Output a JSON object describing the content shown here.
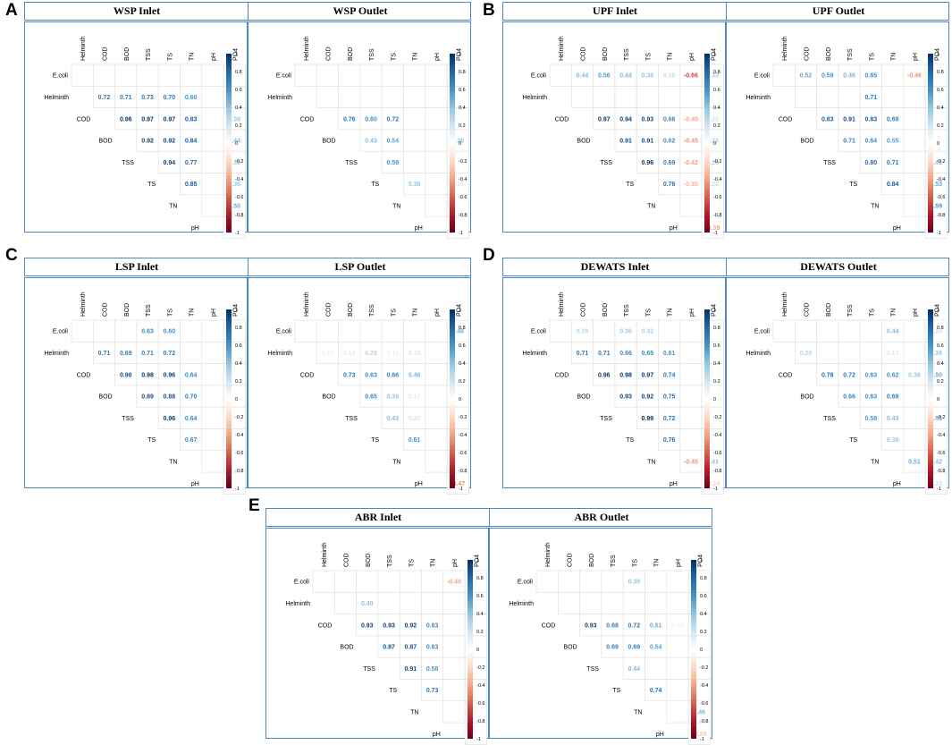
{
  "vars": [
    "E.coli",
    "Helminth",
    "COD",
    "BOD",
    "TSS",
    "TS",
    "TN",
    "pH",
    "PO4"
  ],
  "colorbar_ticks": [
    "1",
    "0.8",
    "0.6",
    "0.4",
    "0.2",
    "0",
    "-0.2",
    "-0.4",
    "-0.6",
    "-0.8",
    "-1"
  ],
  "colors": {
    "positive": "#053061",
    "negative": "#67001f",
    "zero": "#ffffff",
    "frame": "#4f86c6",
    "grid": "#dddddd"
  },
  "chart_data": [
    {
      "type": "heatmap",
      "panel": "A",
      "title": "WSP Inlet",
      "categories": [
        "E.coli",
        "Helminth",
        "COD",
        "BOD",
        "TSS",
        "TS",
        "TN",
        "pH",
        "PO4"
      ],
      "scale": [
        -1,
        1
      ],
      "cells": [
        {
          "row": "Helminth",
          "col": "COD",
          "v": 0.72
        },
        {
          "row": "Helminth",
          "col": "BOD",
          "v": 0.71
        },
        {
          "row": "Helminth",
          "col": "TSS",
          "v": 0.73
        },
        {
          "row": "Helminth",
          "col": "TS",
          "v": 0.7
        },
        {
          "row": "Helminth",
          "col": "TN",
          "v": 0.6
        },
        {
          "row": "COD",
          "col": "BOD",
          "v": 0.96
        },
        {
          "row": "COD",
          "col": "TSS",
          "v": 0.97
        },
        {
          "row": "COD",
          "col": "TS",
          "v": 0.97
        },
        {
          "row": "COD",
          "col": "TN",
          "v": 0.83
        },
        {
          "row": "COD",
          "col": "PO4",
          "v": 0.38
        },
        {
          "row": "BOD",
          "col": "TSS",
          "v": 0.92
        },
        {
          "row": "BOD",
          "col": "TS",
          "v": 0.92
        },
        {
          "row": "BOD",
          "col": "TN",
          "v": 0.84
        },
        {
          "row": "BOD",
          "col": "PO4",
          "v": 0.44
        },
        {
          "row": "TSS",
          "col": "TS",
          "v": 0.94
        },
        {
          "row": "TSS",
          "col": "TN",
          "v": 0.77
        },
        {
          "row": "TSS",
          "col": "PO4",
          "v": 0.32
        },
        {
          "row": "TS",
          "col": "TN",
          "v": 0.85
        },
        {
          "row": "TS",
          "col": "PO4",
          "v": 0.36
        },
        {
          "row": "TN",
          "col": "PO4",
          "v": 0.5
        }
      ]
    },
    {
      "type": "heatmap",
      "panel": "A",
      "title": "WSP Outlet",
      "categories": [
        "E.coli",
        "Helminth",
        "COD",
        "BOD",
        "TSS",
        "TS",
        "TN",
        "pH",
        "PO4"
      ],
      "scale": [
        -1,
        1
      ],
      "cells": [
        {
          "row": "COD",
          "col": "BOD",
          "v": 0.76
        },
        {
          "row": "COD",
          "col": "TSS",
          "v": 0.6
        },
        {
          "row": "COD",
          "col": "TS",
          "v": 0.72
        },
        {
          "row": "COD",
          "col": "PO4",
          "v": 0.03
        },
        {
          "row": "BOD",
          "col": "TSS",
          "v": 0.43
        },
        {
          "row": "BOD",
          "col": "TS",
          "v": 0.54
        },
        {
          "row": "BOD",
          "col": "PO4",
          "v": 0.36
        },
        {
          "row": "TSS",
          "col": "TS",
          "v": 0.59
        },
        {
          "row": "TSS",
          "col": "PO4",
          "v": -0.01
        },
        {
          "row": "TS",
          "col": "TN",
          "v": 0.38
        },
        {
          "row": "TS",
          "col": "PO4",
          "v": 0.16
        }
      ]
    },
    {
      "type": "heatmap",
      "panel": "B",
      "title": "UPF Inlet",
      "categories": [
        "E.coli",
        "Helminth",
        "COD",
        "BOD",
        "TSS",
        "TS",
        "TN",
        "pH",
        "PO4"
      ],
      "scale": [
        -1,
        1
      ],
      "cells": [
        {
          "row": "E.coli",
          "col": "COD",
          "v": 0.44
        },
        {
          "row": "E.coli",
          "col": "BOD",
          "v": 0.56
        },
        {
          "row": "E.coli",
          "col": "TSS",
          "v": 0.44
        },
        {
          "row": "E.coli",
          "col": "TS",
          "v": 0.38
        },
        {
          "row": "E.coli",
          "col": "TN",
          "v": 0.25
        },
        {
          "row": "E.coli",
          "col": "pH",
          "v": -0.66
        },
        {
          "row": "E.coli",
          "col": "PO4",
          "v": 0.33
        },
        {
          "row": "COD",
          "col": "BOD",
          "v": 0.97
        },
        {
          "row": "COD",
          "col": "TSS",
          "v": 0.94
        },
        {
          "row": "COD",
          "col": "TS",
          "v": 0.93
        },
        {
          "row": "COD",
          "col": "TN",
          "v": 0.66
        },
        {
          "row": "COD",
          "col": "pH",
          "v": -0.4
        },
        {
          "row": "COD",
          "col": "PO4",
          "v": 0.22
        },
        {
          "row": "BOD",
          "col": "TSS",
          "v": 0.91
        },
        {
          "row": "BOD",
          "col": "TS",
          "v": 0.91
        },
        {
          "row": "BOD",
          "col": "TN",
          "v": 0.62
        },
        {
          "row": "BOD",
          "col": "pH",
          "v": -0.45
        },
        {
          "row": "BOD",
          "col": "PO4",
          "v": 0.28
        },
        {
          "row": "TSS",
          "col": "TS",
          "v": 0.96
        },
        {
          "row": "TSS",
          "col": "TN",
          "v": 0.69
        },
        {
          "row": "TSS",
          "col": "pH",
          "v": -0.42
        },
        {
          "row": "TSS",
          "col": "PO4",
          "v": 0.28
        },
        {
          "row": "TS",
          "col": "TN",
          "v": 0.76
        },
        {
          "row": "TS",
          "col": "pH",
          "v": -0.35
        },
        {
          "row": "TS",
          "col": "PO4",
          "v": 0.22
        },
        {
          "row": "pH",
          "col": "PO4",
          "v": -0.39
        }
      ]
    },
    {
      "type": "heatmap",
      "panel": "B",
      "title": "UPF Outlet",
      "categories": [
        "E.coli",
        "Helminth",
        "COD",
        "BOD",
        "TSS",
        "TS",
        "TN",
        "pH",
        "PO4"
      ],
      "scale": [
        -1,
        1
      ],
      "cells": [
        {
          "row": "E.coli",
          "col": "COD",
          "v": 0.52
        },
        {
          "row": "E.coli",
          "col": "BOD",
          "v": 0.59
        },
        {
          "row": "E.coli",
          "col": "TSS",
          "v": 0.46
        },
        {
          "row": "E.coli",
          "col": "TS",
          "v": 0.65
        },
        {
          "row": "E.coli",
          "col": "pH",
          "v": -0.46
        },
        {
          "row": "Helminth",
          "col": "TS",
          "v": 0.71
        },
        {
          "row": "COD",
          "col": "BOD",
          "v": 0.83
        },
        {
          "row": "COD",
          "col": "TSS",
          "v": 0.91
        },
        {
          "row": "COD",
          "col": "TS",
          "v": 0.83
        },
        {
          "row": "COD",
          "col": "TN",
          "v": 0.69
        },
        {
          "row": "BOD",
          "col": "TSS",
          "v": 0.71
        },
        {
          "row": "BOD",
          "col": "TS",
          "v": 0.64
        },
        {
          "row": "BOD",
          "col": "TN",
          "v": 0.55
        },
        {
          "row": "TSS",
          "col": "TS",
          "v": 0.8
        },
        {
          "row": "TSS",
          "col": "TN",
          "v": 0.71
        },
        {
          "row": "TSS",
          "col": "PO4",
          "v": 0.41
        },
        {
          "row": "TS",
          "col": "TN",
          "v": 0.84
        },
        {
          "row": "TS",
          "col": "PO4",
          "v": 0.53
        },
        {
          "row": "TN",
          "col": "PO4",
          "v": 0.59
        }
      ]
    },
    {
      "type": "heatmap",
      "panel": "C",
      "title": "LSP Inlet",
      "categories": [
        "E.coli",
        "Helminth",
        "COD",
        "BOD",
        "TSS",
        "TS",
        "TN",
        "pH",
        "PO4"
      ],
      "scale": [
        -1,
        1
      ],
      "cells": [
        {
          "row": "E.coli",
          "col": "TSS",
          "v": 0.63
        },
        {
          "row": "E.coli",
          "col": "TS",
          "v": 0.6
        },
        {
          "row": "Helminth",
          "col": "COD",
          "v": 0.71
        },
        {
          "row": "Helminth",
          "col": "BOD",
          "v": 0.69
        },
        {
          "row": "Helminth",
          "col": "TSS",
          "v": 0.71
        },
        {
          "row": "Helminth",
          "col": "TS",
          "v": 0.72
        },
        {
          "row": "COD",
          "col": "BOD",
          "v": 0.9
        },
        {
          "row": "COD",
          "col": "TSS",
          "v": 0.98
        },
        {
          "row": "COD",
          "col": "TS",
          "v": 0.96
        },
        {
          "row": "COD",
          "col": "TN",
          "v": 0.64
        },
        {
          "row": "BOD",
          "col": "TSS",
          "v": 0.89
        },
        {
          "row": "BOD",
          "col": "TS",
          "v": 0.88
        },
        {
          "row": "BOD",
          "col": "TN",
          "v": 0.7
        },
        {
          "row": "TSS",
          "col": "TS",
          "v": 0.96
        },
        {
          "row": "TSS",
          "col": "TN",
          "v": 0.64
        },
        {
          "row": "TS",
          "col": "TN",
          "v": 0.67
        }
      ]
    },
    {
      "type": "heatmap",
      "panel": "C",
      "title": "LSP Outlet",
      "categories": [
        "E.coli",
        "Helminth",
        "COD",
        "BOD",
        "TSS",
        "TS",
        "TN",
        "pH",
        "PO4"
      ],
      "scale": [
        -1,
        1
      ],
      "cells": [
        {
          "row": "E.coli",
          "col": "PO4",
          "v": 0.48
        },
        {
          "row": "Helminth",
          "col": "COD",
          "v": 0.11
        },
        {
          "row": "Helminth",
          "col": "BOD",
          "v": 0.14
        },
        {
          "row": "Helminth",
          "col": "TSS",
          "v": 0.29
        },
        {
          "row": "Helminth",
          "col": "TS",
          "v": 0.11
        },
        {
          "row": "Helminth",
          "col": "TN",
          "v": 0.18
        },
        {
          "row": "COD",
          "col": "BOD",
          "v": 0.73
        },
        {
          "row": "COD",
          "col": "TSS",
          "v": 0.63
        },
        {
          "row": "COD",
          "col": "TS",
          "v": 0.66
        },
        {
          "row": "COD",
          "col": "TN",
          "v": 0.46
        },
        {
          "row": "BOD",
          "col": "TSS",
          "v": 0.65
        },
        {
          "row": "BOD",
          "col": "TS",
          "v": 0.39
        },
        {
          "row": "BOD",
          "col": "TN",
          "v": 0.17
        },
        {
          "row": "TSS",
          "col": "TS",
          "v": 0.43
        },
        {
          "row": "TSS",
          "col": "TN",
          "v": 0.2
        },
        {
          "row": "TS",
          "col": "TN",
          "v": 0.61
        },
        {
          "row": "pH",
          "col": "PO4",
          "v": -0.47
        }
      ]
    },
    {
      "type": "heatmap",
      "panel": "D",
      "title": "DEWATS Inlet",
      "categories": [
        "E.coli",
        "Helminth",
        "COD",
        "BOD",
        "TSS",
        "TS",
        "TN",
        "pH",
        "PO4"
      ],
      "scale": [
        -1,
        1
      ],
      "cells": [
        {
          "row": "E.coli",
          "col": "COD",
          "v": 0.29
        },
        {
          "row": "E.coli",
          "col": "TSS",
          "v": 0.36
        },
        {
          "row": "E.coli",
          "col": "TS",
          "v": 0.32
        },
        {
          "row": "Helminth",
          "col": "COD",
          "v": 0.71
        },
        {
          "row": "Helminth",
          "col": "BOD",
          "v": 0.71
        },
        {
          "row": "Helminth",
          "col": "TSS",
          "v": 0.66
        },
        {
          "row": "Helminth",
          "col": "TS",
          "v": 0.65
        },
        {
          "row": "Helminth",
          "col": "TN",
          "v": 0.61
        },
        {
          "row": "COD",
          "col": "BOD",
          "v": 0.96
        },
        {
          "row": "COD",
          "col": "TSS",
          "v": 0.98
        },
        {
          "row": "COD",
          "col": "TS",
          "v": 0.97
        },
        {
          "row": "COD",
          "col": "TN",
          "v": 0.74
        },
        {
          "row": "BOD",
          "col": "TSS",
          "v": 0.93
        },
        {
          "row": "BOD",
          "col": "TS",
          "v": 0.92
        },
        {
          "row": "BOD",
          "col": "TN",
          "v": 0.75
        },
        {
          "row": "TSS",
          "col": "TS",
          "v": 0.99
        },
        {
          "row": "TSS",
          "col": "TN",
          "v": 0.72
        },
        {
          "row": "TS",
          "col": "TN",
          "v": 0.76
        },
        {
          "row": "TN",
          "col": "pH",
          "v": -0.45
        },
        {
          "row": "TN",
          "col": "PO4",
          "v": 0.41
        },
        {
          "row": "pH",
          "col": "PO4",
          "v": -0.24
        }
      ]
    },
    {
      "type": "heatmap",
      "panel": "D",
      "title": "DEWATS Outlet",
      "categories": [
        "E.coli",
        "Helminth",
        "COD",
        "BOD",
        "TSS",
        "TS",
        "TN",
        "pH",
        "PO4"
      ],
      "scale": [
        -1,
        1
      ],
      "cells": [
        {
          "row": "E.coli",
          "col": "TN",
          "v": 0.44
        },
        {
          "row": "E.coli",
          "col": "PO4",
          "v": 0.24
        },
        {
          "row": "Helminth",
          "col": "COD",
          "v": 0.29
        },
        {
          "row": "Helminth",
          "col": "TN",
          "v": 0.17
        },
        {
          "row": "Helminth",
          "col": "PO4",
          "v": 0.38
        },
        {
          "row": "COD",
          "col": "BOD",
          "v": 0.78
        },
        {
          "row": "COD",
          "col": "TSS",
          "v": 0.72
        },
        {
          "row": "COD",
          "col": "TS",
          "v": 0.63
        },
        {
          "row": "COD",
          "col": "TN",
          "v": 0.62
        },
        {
          "row": "COD",
          "col": "pH",
          "v": 0.38
        },
        {
          "row": "COD",
          "col": "PO4",
          "v": 0.5
        },
        {
          "row": "BOD",
          "col": "TSS",
          "v": 0.66
        },
        {
          "row": "BOD",
          "col": "TS",
          "v": 0.63
        },
        {
          "row": "BOD",
          "col": "TN",
          "v": 0.69
        },
        {
          "row": "TSS",
          "col": "TS",
          "v": 0.58
        },
        {
          "row": "TSS",
          "col": "TN",
          "v": 0.43
        },
        {
          "row": "TSS",
          "col": "PO4",
          "v": 0.51
        },
        {
          "row": "TS",
          "col": "TN",
          "v": 0.38
        },
        {
          "row": "TN",
          "col": "pH",
          "v": 0.51
        },
        {
          "row": "TN",
          "col": "PO4",
          "v": 0.42
        },
        {
          "row": "pH",
          "col": "PO4",
          "v": 0.23
        }
      ]
    },
    {
      "type": "heatmap",
      "panel": "E",
      "title": "ABR Inlet",
      "categories": [
        "E.coli",
        "Helminth",
        "COD",
        "BOD",
        "TSS",
        "TS",
        "TN",
        "pH",
        "PO4"
      ],
      "scale": [
        -1,
        1
      ],
      "cells": [
        {
          "row": "E.coli",
          "col": "pH",
          "v": -0.4
        },
        {
          "row": "Helminth",
          "col": "BOD",
          "v": 0.4
        },
        {
          "row": "COD",
          "col": "BOD",
          "v": 0.93
        },
        {
          "row": "COD",
          "col": "TSS",
          "v": 0.93
        },
        {
          "row": "COD",
          "col": "TS",
          "v": 0.92
        },
        {
          "row": "COD",
          "col": "TN",
          "v": 0.63
        },
        {
          "row": "BOD",
          "col": "TSS",
          "v": 0.87
        },
        {
          "row": "BOD",
          "col": "TS",
          "v": 0.87
        },
        {
          "row": "BOD",
          "col": "TN",
          "v": 0.63
        },
        {
          "row": "TSS",
          "col": "TS",
          "v": 0.91
        },
        {
          "row": "TSS",
          "col": "TN",
          "v": 0.58
        },
        {
          "row": "TS",
          "col": "TN",
          "v": 0.73
        }
      ]
    },
    {
      "type": "heatmap",
      "panel": "E",
      "title": "ABR Outlet",
      "categories": [
        "E.coli",
        "Helminth",
        "COD",
        "BOD",
        "TSS",
        "TS",
        "TN",
        "pH",
        "PO4"
      ],
      "scale": [
        -1,
        1
      ],
      "cells": [
        {
          "row": "E.coli",
          "col": "TS",
          "v": 0.39
        },
        {
          "row": "COD",
          "col": "BOD",
          "v": 0.93
        },
        {
          "row": "COD",
          "col": "TSS",
          "v": 0.68
        },
        {
          "row": "COD",
          "col": "TS",
          "v": 0.72
        },
        {
          "row": "COD",
          "col": "TN",
          "v": 0.51
        },
        {
          "row": "COD",
          "col": "pH",
          "v": 0.08
        },
        {
          "row": "BOD",
          "col": "TSS",
          "v": 0.69
        },
        {
          "row": "BOD",
          "col": "TS",
          "v": 0.69
        },
        {
          "row": "BOD",
          "col": "TN",
          "v": 0.54
        },
        {
          "row": "TSS",
          "col": "TS",
          "v": 0.44
        },
        {
          "row": "TS",
          "col": "TN",
          "v": 0.74
        },
        {
          "row": "TN",
          "col": "PO4",
          "v": 0.46
        },
        {
          "row": "pH",
          "col": "PO4",
          "v": -0.29
        }
      ]
    }
  ],
  "panels": [
    {
      "letter": "A"
    },
    {
      "letter": "B"
    },
    {
      "letter": "C"
    },
    {
      "letter": "D"
    },
    {
      "letter": "E"
    }
  ]
}
